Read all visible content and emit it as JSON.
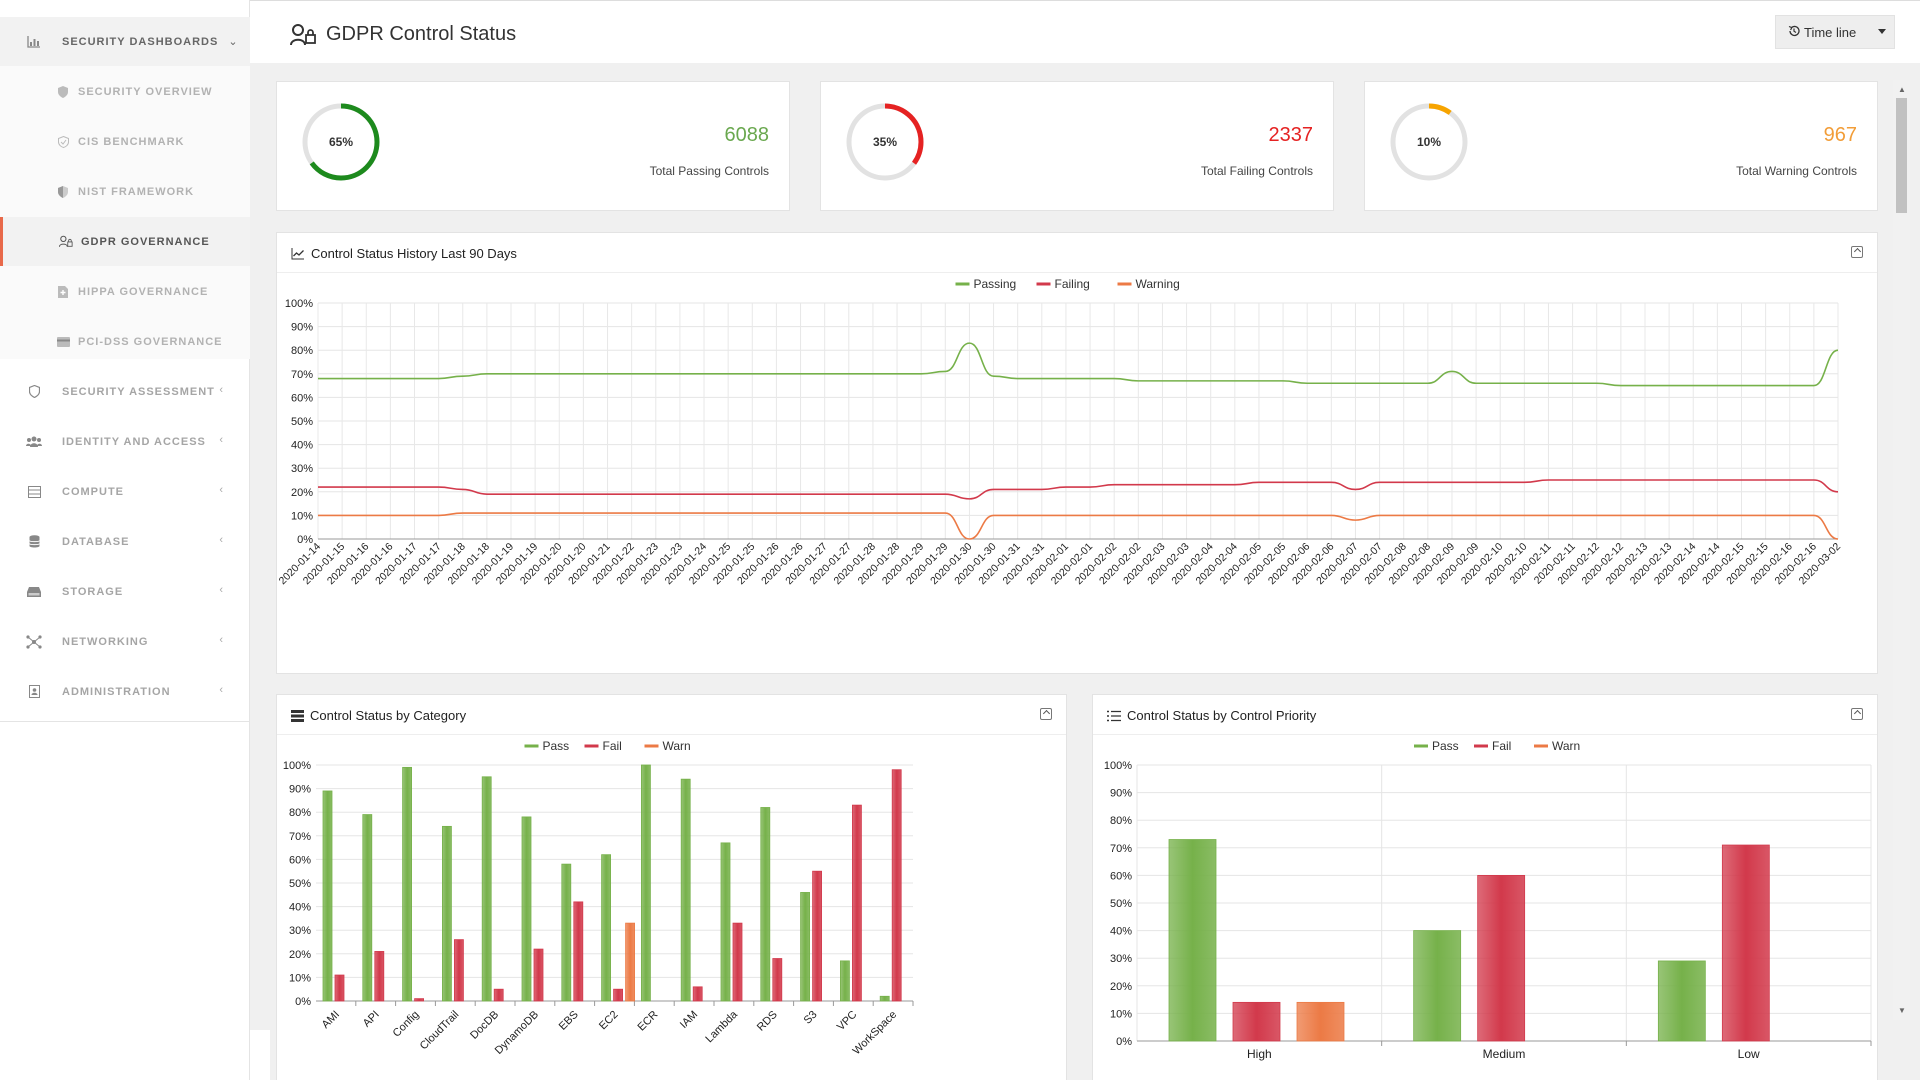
{
  "app": {
    "page_title": "GDPR Control Status",
    "timeline_label": "Time line"
  },
  "sidebar": {
    "sections": [
      {
        "label": "SECURITY DASHBOARDS",
        "icon": "bar-chart-icon",
        "expanded": true,
        "children": [
          {
            "label": "SECURITY OVERVIEW",
            "icon": "shield-icon"
          },
          {
            "label": "CIS BENCHMARK",
            "icon": "shield-check-icon"
          },
          {
            "label": "NIST FRAMEWORK",
            "icon": "shield-half-icon"
          },
          {
            "label": "GDPR GOVERNANCE",
            "icon": "user-lock-icon",
            "active": true
          },
          {
            "label": "HIPPA GOVERNANCE",
            "icon": "medical-file-icon"
          },
          {
            "label": "PCI-DSS GOVERNANCE",
            "icon": "credit-card-icon"
          }
        ]
      },
      {
        "label": "SECURITY ASSESSMENT",
        "icon": "shield-outline-icon"
      },
      {
        "label": "IDENTITY AND ACCESS",
        "icon": "users-icon"
      },
      {
        "label": "COMPUTE",
        "icon": "server-icon"
      },
      {
        "label": "DATABASE",
        "icon": "database-icon"
      },
      {
        "label": "STORAGE",
        "icon": "hdd-icon"
      },
      {
        "label": "NETWORKING",
        "icon": "network-icon"
      },
      {
        "label": "ADMINISTRATION",
        "icon": "admin-icon"
      }
    ]
  },
  "kpis": [
    {
      "percent_label": "65%",
      "percent": 65,
      "value": "6088",
      "label": "Total Passing Controls",
      "color": "#6aa84f",
      "ring_color": "#1d8a1d"
    },
    {
      "percent_label": "35%",
      "percent": 35,
      "value": "2337",
      "label": "Total Failing Controls",
      "color": "#e52222",
      "ring_color": "#e52222"
    },
    {
      "percent_label": "10%",
      "percent": 10,
      "value": "967",
      "label": "Total Warning Controls",
      "color": "#f29d38",
      "ring_color": "#f7a400"
    }
  ],
  "history_panel": {
    "title": "Control Status History Last 90 Days"
  },
  "category_panel": {
    "title": "Control Status by Category"
  },
  "priority_panel": {
    "title": "Control Status by Control Priority"
  },
  "colors": {
    "pass": "#76b14a",
    "fail": "#d2394b",
    "warn": "#ec7a45"
  },
  "chart_data": [
    {
      "type": "line",
      "title": "Control Status History Last 90 Days",
      "ylim": [
        0,
        100
      ],
      "yticks": [
        "0%",
        "10%",
        "20%",
        "30%",
        "40%",
        "50%",
        "60%",
        "70%",
        "80%",
        "90%",
        "100%"
      ],
      "legend": [
        "Passing",
        "Failing",
        "Warning"
      ],
      "x": [
        "2020-01-14",
        "2020-01-15",
        "2020-01-16",
        "2020-01-16",
        "2020-01-17",
        "2020-01-17",
        "2020-01-18",
        "2020-01-18",
        "2020-01-19",
        "2020-01-19",
        "2020-01-20",
        "2020-01-20",
        "2020-01-21",
        "2020-01-22",
        "2020-01-23",
        "2020-01-23",
        "2020-01-24",
        "2020-01-25",
        "2020-01-25",
        "2020-01-26",
        "2020-01-26",
        "2020-01-27",
        "2020-01-27",
        "2020-01-28",
        "2020-01-28",
        "2020-01-29",
        "2020-01-29",
        "2020-01-30",
        "2020-01-30",
        "2020-01-31",
        "2020-01-31",
        "2020-02-01",
        "2020-02-01",
        "2020-02-02",
        "2020-02-02",
        "2020-02-03",
        "2020-02-03",
        "2020-02-04",
        "2020-02-04",
        "2020-02-05",
        "2020-02-05",
        "2020-02-06",
        "2020-02-06",
        "2020-02-07",
        "2020-02-07",
        "2020-02-08",
        "2020-02-08",
        "2020-02-09",
        "2020-02-09",
        "2020-02-10",
        "2020-02-10",
        "2020-02-11",
        "2020-02-11",
        "2020-02-12",
        "2020-02-12",
        "2020-02-13",
        "2020-02-13",
        "2020-02-14",
        "2020-02-14",
        "2020-02-15",
        "2020-02-15",
        "2020-02-16",
        "2020-02-16",
        "2020-03-02"
      ],
      "series": [
        {
          "name": "Passing",
          "values": [
            68,
            68,
            68,
            68,
            68,
            68,
            69,
            70,
            70,
            70,
            70,
            70,
            70,
            70,
            70,
            70,
            70,
            70,
            70,
            70,
            70,
            70,
            70,
            70,
            70,
            70,
            71,
            83,
            69,
            68,
            68,
            68,
            68,
            68,
            67,
            67,
            67,
            67,
            67,
            67,
            67,
            66,
            66,
            66,
            66,
            66,
            66,
            71,
            66,
            66,
            66,
            66,
            66,
            66,
            65,
            65,
            65,
            65,
            65,
            65,
            65,
            65,
            65,
            80
          ]
        },
        {
          "name": "Failing",
          "values": [
            22,
            22,
            22,
            22,
            22,
            22,
            21,
            19,
            19,
            19,
            19,
            19,
            19,
            19,
            19,
            19,
            19,
            19,
            19,
            19,
            19,
            19,
            19,
            19,
            19,
            19,
            19,
            17,
            21,
            21,
            21,
            22,
            22,
            23,
            23,
            23,
            23,
            23,
            23,
            24,
            24,
            24,
            24,
            21,
            24,
            24,
            24,
            24,
            24,
            24,
            24,
            25,
            25,
            25,
            25,
            25,
            25,
            25,
            25,
            25,
            25,
            25,
            25,
            20
          ]
        },
        {
          "name": "Warning",
          "values": [
            10,
            10,
            10,
            10,
            10,
            10,
            11,
            11,
            11,
            11,
            11,
            11,
            11,
            11,
            11,
            11,
            11,
            11,
            11,
            11,
            11,
            11,
            11,
            11,
            11,
            11,
            11,
            0,
            10,
            10,
            10,
            10,
            10,
            10,
            10,
            10,
            10,
            10,
            10,
            10,
            10,
            10,
            10,
            8,
            10,
            10,
            10,
            10,
            10,
            10,
            10,
            10,
            10,
            10,
            10,
            10,
            10,
            10,
            10,
            10,
            10,
            10,
            10,
            0
          ]
        }
      ]
    },
    {
      "type": "bar",
      "title": "Control Status by Category",
      "ylim": [
        0,
        100
      ],
      "yticks": [
        "0%",
        "10%",
        "20%",
        "30%",
        "40%",
        "50%",
        "60%",
        "70%",
        "80%",
        "90%",
        "100%"
      ],
      "legend": [
        "Pass",
        "Fail",
        "Warn"
      ],
      "categories": [
        "AMI",
        "API",
        "Config",
        "CloudTrail",
        "DocDB",
        "DynamoDB",
        "EBS",
        "EC2",
        "ECR",
        "IAM",
        "Lambda",
        "RDS",
        "S3",
        "VPC",
        "WorkSpace"
      ],
      "series": [
        {
          "name": "Pass",
          "values": [
            89,
            79,
            99,
            74,
            95,
            78,
            58,
            62,
            100,
            94,
            67,
            82,
            46,
            17,
            2
          ]
        },
        {
          "name": "Fail",
          "values": [
            11,
            21,
            1,
            26,
            5,
            22,
            42,
            5,
            0,
            6,
            33,
            18,
            55,
            83,
            98
          ]
        },
        {
          "name": "Warn",
          "values": [
            0,
            0,
            0,
            0,
            0,
            0,
            0,
            33,
            0,
            0,
            0,
            0,
            0,
            0,
            0
          ]
        }
      ]
    },
    {
      "type": "bar",
      "title": "Control Status by Control Priority",
      "ylim": [
        0,
        100
      ],
      "yticks": [
        "0%",
        "10%",
        "20%",
        "30%",
        "40%",
        "50%",
        "60%",
        "70%",
        "80%",
        "90%",
        "100%"
      ],
      "legend": [
        "Pass",
        "Fail",
        "Warn"
      ],
      "categories": [
        "High",
        "Medium",
        "Low"
      ],
      "series": [
        {
          "name": "Pass",
          "values": [
            73,
            40,
            29
          ]
        },
        {
          "name": "Fail",
          "values": [
            14,
            60,
            71
          ]
        },
        {
          "name": "Warn",
          "values": [
            14,
            0,
            0
          ]
        }
      ]
    }
  ]
}
